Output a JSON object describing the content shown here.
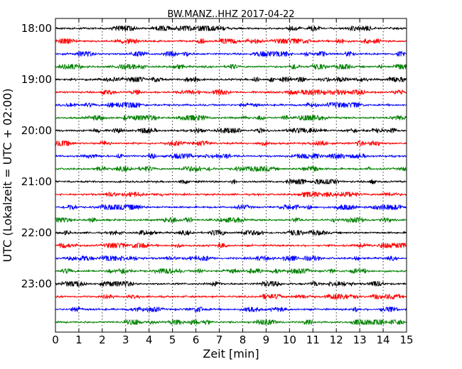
{
  "chart_data": {
    "type": "line",
    "title": "BW.MANZ..HHZ 2017-04-22",
    "xlabel": "Zeit  [min]",
    "ylabel": "UTC (Lokalzeit = UTC + 02:00)",
    "xlim": [
      0,
      15
    ],
    "x_ticks": [
      "0",
      "1",
      "2",
      "3",
      "4",
      "5",
      "6",
      "7",
      "8",
      "9",
      "10",
      "11",
      "12",
      "13",
      "14",
      "15"
    ],
    "y_ticks": [
      "18:00",
      "19:00",
      "20:00",
      "21:00",
      "22:00",
      "23:00"
    ],
    "grid": "vertical dotted lines at each minute",
    "trace_interval_minutes": 15,
    "trace_colors": [
      "#000000",
      "#ff0000",
      "#0000ff",
      "#008000"
    ],
    "series": [
      {
        "start": "18:00",
        "color": "#000000"
      },
      {
        "start": "18:15",
        "color": "#ff0000"
      },
      {
        "start": "18:30",
        "color": "#0000ff"
      },
      {
        "start": "18:45",
        "color": "#008000"
      },
      {
        "start": "19:00",
        "color": "#000000"
      },
      {
        "start": "19:15",
        "color": "#ff0000"
      },
      {
        "start": "19:30",
        "color": "#0000ff"
      },
      {
        "start": "19:45",
        "color": "#008000"
      },
      {
        "start": "20:00",
        "color": "#000000"
      },
      {
        "start": "20:15",
        "color": "#ff0000"
      },
      {
        "start": "20:30",
        "color": "#0000ff"
      },
      {
        "start": "20:45",
        "color": "#008000"
      },
      {
        "start": "21:00",
        "color": "#000000"
      },
      {
        "start": "21:15",
        "color": "#ff0000"
      },
      {
        "start": "21:30",
        "color": "#0000ff"
      },
      {
        "start": "21:45",
        "color": "#008000"
      },
      {
        "start": "22:00",
        "color": "#000000"
      },
      {
        "start": "22:15",
        "color": "#ff0000"
      },
      {
        "start": "22:30",
        "color": "#0000ff"
      },
      {
        "start": "22:45",
        "color": "#008000"
      },
      {
        "start": "23:00",
        "color": "#000000"
      },
      {
        "start": "23:15",
        "color": "#ff0000"
      },
      {
        "start": "23:30",
        "color": "#0000ff"
      },
      {
        "start": "23:45",
        "color": "#008000"
      }
    ]
  }
}
